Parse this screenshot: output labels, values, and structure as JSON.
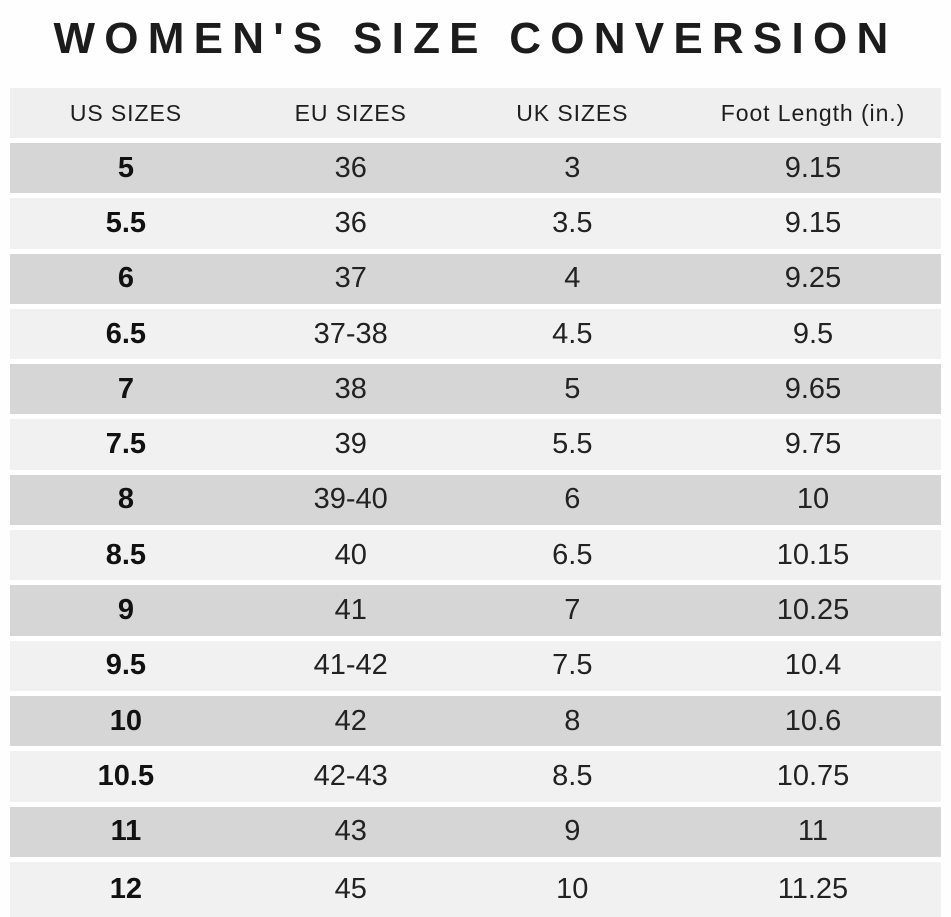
{
  "title": "WOMEN'S SIZE CONVERSION",
  "colors": {
    "header_bg": "#efefef",
    "row_gray": "#d6d6d7",
    "row_light": "#f1f1f2",
    "text": "#1e1e1e",
    "background": "#ffffff"
  },
  "chart_data": {
    "type": "table",
    "title": "WOMEN'S SIZE CONVERSION",
    "columns": [
      "US SIZES",
      "EU SIZES",
      "UK SIZES",
      "Foot Length (in.)"
    ],
    "rows": [
      [
        "5",
        "36",
        "3",
        "9.15"
      ],
      [
        "5.5",
        "36",
        "3.5",
        "9.15"
      ],
      [
        "6",
        "37",
        "4",
        "9.25"
      ],
      [
        "6.5",
        "37-38",
        "4.5",
        "9.5"
      ],
      [
        "7",
        "38",
        "5",
        "9.65"
      ],
      [
        "7.5",
        "39",
        "5.5",
        "9.75"
      ],
      [
        "8",
        "39-40",
        "6",
        "10"
      ],
      [
        "8.5",
        "40",
        "6.5",
        "10.15"
      ],
      [
        "9",
        "41",
        "7",
        "10.25"
      ],
      [
        "9.5",
        "41-42",
        "7.5",
        "10.4"
      ],
      [
        "10",
        "42",
        "8",
        "10.6"
      ],
      [
        "10.5",
        "42-43",
        "8.5",
        "10.75"
      ],
      [
        "11",
        "43",
        "9",
        "11"
      ],
      [
        "12",
        "45",
        "10",
        "11.25"
      ]
    ],
    "layout": {
      "stripe_pattern": "first data row gray, alternating",
      "us_sizes_column_bold": true,
      "grid": "rows separated by white gaps",
      "legend": "none"
    }
  }
}
